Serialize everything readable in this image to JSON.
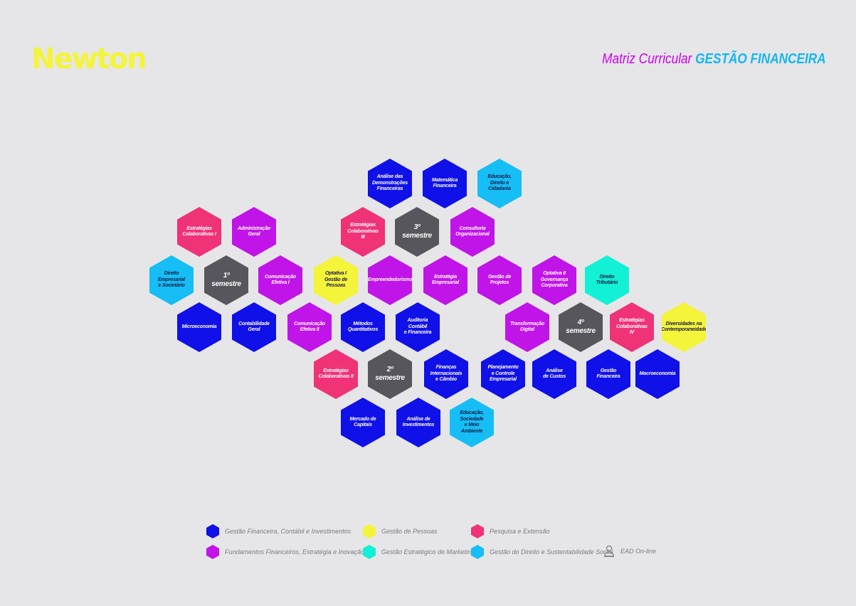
{
  "header": {
    "logo": "Newton",
    "title_prefix": "Matriz Curricular",
    "title_course": "GESTÃO FINANCEIRA"
  },
  "colors": {
    "blue": "#1010e8",
    "purple": "#c014e8",
    "pink": "#f03276",
    "yellow": "#f4f43a",
    "cyan": "#16bef5",
    "teal": "#12f0d6",
    "sem": "#56565c"
  },
  "hexes": [
    {
      "label": "Análise das\nDemonstrações\nFinanceiras",
      "cat": "blue"
    },
    {
      "label": "Matemática\nFinanceira",
      "cat": "blue"
    },
    {
      "label": "Educação,\nDireito e\nCidadania",
      "cat": "cyan"
    },
    {
      "label": "Estratégias\nColaborativas I",
      "cat": "pink"
    },
    {
      "label": "Administração Geral",
      "cat": "purple"
    },
    {
      "label": "Estratégias\nColaborativas III",
      "cat": "pink"
    },
    {
      "label": "3º semestre",
      "cat": "sem"
    },
    {
      "label": "Consultoria\nOrganizacional",
      "cat": "purple"
    },
    {
      "label": "Direito Empresarial\ne Societário",
      "cat": "cyan"
    },
    {
      "label": "1º semestre",
      "cat": "sem"
    },
    {
      "label": "Comunicação\nEfetiva I",
      "cat": "purple"
    },
    {
      "label": "Optativa I\nGestão de\nPessoas",
      "cat": "yellow"
    },
    {
      "label": "Empreendedorismo",
      "cat": "purple"
    },
    {
      "label": "Estratégia\nEmpresarial",
      "cat": "purple"
    },
    {
      "label": "Gestão de\nProjetos",
      "cat": "purple"
    },
    {
      "label": "Optativa II\nGovernança\nCorporativa",
      "cat": "purple"
    },
    {
      "label": "Direito\nTributário",
      "cat": "teal"
    },
    {
      "label": "Microeconomia",
      "cat": "blue"
    },
    {
      "label": "Contabilidade Geral",
      "cat": "blue"
    },
    {
      "label": "Comunicação\nEfetiva II",
      "cat": "purple"
    },
    {
      "label": "Métodos\nQuantitativos",
      "cat": "blue"
    },
    {
      "label": "Auditoria\nContábil\ne Financeira",
      "cat": "blue"
    },
    {
      "label": "Transformação\nDigital",
      "cat": "purple"
    },
    {
      "label": "4º semestre",
      "cat": "sem"
    },
    {
      "label": "Estratégias\nColaborativas IV",
      "cat": "pink"
    },
    {
      "label": "Diversidades na\nContemporaneidade",
      "cat": "yellow"
    },
    {
      "label": "Estratégias\nColaborativas II",
      "cat": "pink"
    },
    {
      "label": "2º semestre",
      "cat": "sem"
    },
    {
      "label": "Finanças\nInternacionais\ne Câmbio",
      "cat": "blue"
    },
    {
      "label": "Planejamento\ne Controle\nEmpresarial",
      "cat": "blue"
    },
    {
      "label": "Análise\nde Custos",
      "cat": "blue"
    },
    {
      "label": "Gestão\nFinanceira",
      "cat": "blue"
    },
    {
      "label": "Macroeconomia",
      "cat": "blue"
    },
    {
      "label": "Mercado de Capitais",
      "cat": "blue"
    },
    {
      "label": "Análise de\nInvestimentos",
      "cat": "blue"
    },
    {
      "label": "Educação, Sociedade\ne Meio Ambiente",
      "cat": "cyan"
    }
  ],
  "legend": [
    {
      "label": "Gestão Financeira, Contábil e Investimentos",
      "cat": "blue"
    },
    {
      "label": "Gestão de Pessoas",
      "cat": "yellow"
    },
    {
      "label": "Pesquisa e Extensão",
      "cat": "pink"
    },
    {
      "label": "Fundamentos Financeiros, Estratégia e Inovação",
      "cat": "purple"
    },
    {
      "label": "Gestão Estratégico de Marketing",
      "cat": "teal"
    },
    {
      "label": "Gestão do Direito e Sustentabilidade Social",
      "cat": "cyan"
    },
    {
      "label": "EAD On-line",
      "cat": "icon",
      "icon": "person-icon"
    }
  ]
}
